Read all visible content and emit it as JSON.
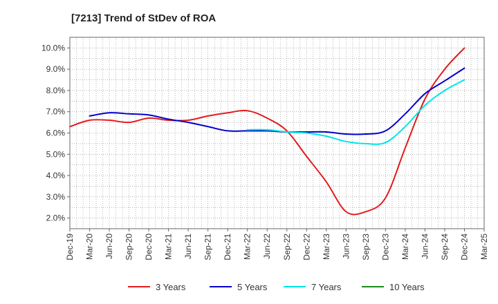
{
  "chart_data": {
    "type": "line",
    "title": "[7213]  Trend of StDev of ROA",
    "xlabel": "",
    "ylabel": "",
    "ylim": [
      1.5,
      10.5
    ],
    "yticks": [
      2.0,
      3.0,
      4.0,
      5.0,
      6.0,
      7.0,
      8.0,
      9.0,
      10.0
    ],
    "ytick_labels": [
      "2.0%",
      "3.0%",
      "4.0%",
      "5.0%",
      "6.0%",
      "7.0%",
      "8.0%",
      "9.0%",
      "10.0%"
    ],
    "categories": [
      "Dec-19",
      "Mar-20",
      "Jun-20",
      "Sep-20",
      "Dec-20",
      "Mar-21",
      "Jun-21",
      "Sep-21",
      "Dec-21",
      "Mar-22",
      "Jun-22",
      "Sep-22",
      "Dec-22",
      "Mar-23",
      "Jun-23",
      "Sep-23",
      "Dec-23",
      "Mar-24",
      "Jun-24",
      "Sep-24",
      "Dec-24",
      "Mar-25"
    ],
    "grid": true,
    "legend_position": "bottom",
    "series": [
      {
        "name": "3 Years",
        "color": "#e31a1c",
        "values": [
          6.3,
          6.6,
          6.6,
          6.5,
          6.7,
          6.6,
          6.6,
          6.8,
          6.95,
          7.05,
          6.7,
          6.1,
          4.9,
          3.7,
          2.3,
          2.3,
          2.95,
          5.3,
          7.6,
          9.0,
          10.0,
          null
        ]
      },
      {
        "name": "5 Years",
        "color": "#0000cc",
        "values": [
          null,
          6.8,
          6.95,
          6.9,
          6.85,
          6.65,
          6.5,
          6.3,
          6.1,
          6.1,
          6.1,
          6.05,
          6.05,
          6.05,
          5.95,
          5.95,
          6.1,
          6.9,
          7.85,
          8.45,
          9.05,
          null
        ]
      },
      {
        "name": "7 Years",
        "color": "#00e5e5",
        "values": [
          null,
          null,
          null,
          null,
          null,
          null,
          null,
          null,
          null,
          6.15,
          6.15,
          6.05,
          6.0,
          5.85,
          5.6,
          5.5,
          5.55,
          6.3,
          7.3,
          8.0,
          8.5,
          null
        ]
      },
      {
        "name": "10 Years",
        "color": "#1a8a1a",
        "values": [
          null,
          null,
          null,
          null,
          null,
          null,
          null,
          null,
          null,
          null,
          null,
          null,
          null,
          null,
          null,
          null,
          null,
          null,
          null,
          null,
          null,
          null
        ]
      }
    ]
  }
}
